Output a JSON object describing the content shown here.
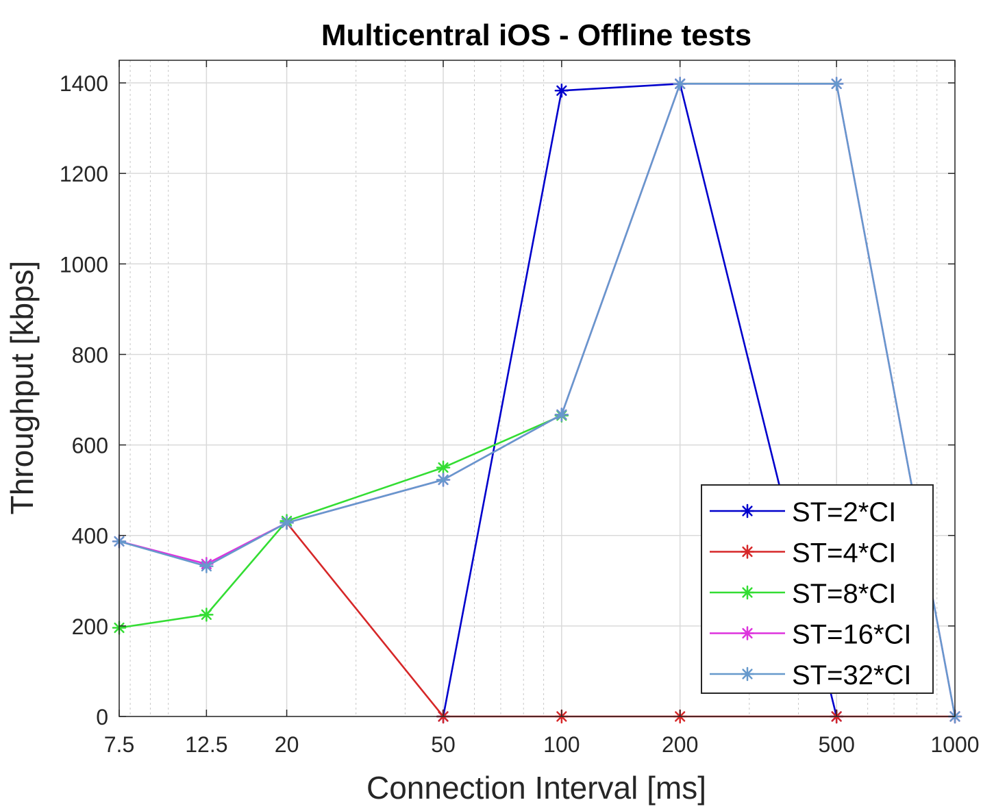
{
  "chart_data": {
    "type": "line",
    "title": "Multicentral iOS - Offline tests",
    "xlabel": "Connection Interval [ms]",
    "ylabel": "Throughput [kbps]",
    "x_scale": "log",
    "x": [
      7.5,
      12.5,
      20,
      50,
      100,
      200,
      500,
      1000
    ],
    "x_tick_labels": [
      "7.5",
      "12.5",
      "20",
      "50",
      "100",
      "200",
      "500",
      "1000"
    ],
    "xlim": [
      7.5,
      1000
    ],
    "ylim": [
      0,
      1450
    ],
    "y_ticks": [
      0,
      200,
      400,
      600,
      800,
      1000,
      1200,
      1400
    ],
    "y_tick_labels": [
      "0",
      "200",
      "400",
      "600",
      "800",
      "1000",
      "1200",
      "1400"
    ],
    "grid": true,
    "legend_position": "bottom-right",
    "series": [
      {
        "name": "ST=2*CI",
        "color": "#0000cc",
        "values": [
          null,
          null,
          null,
          0,
          1383,
          1398,
          0,
          null
        ]
      },
      {
        "name": "ST=4*CI",
        "color": "#d62728",
        "values": [
          null,
          null,
          428,
          0,
          0,
          0,
          0,
          0
        ]
      },
      {
        "name": "ST=8*CI",
        "color": "#33dd33",
        "values": [
          196,
          225,
          432,
          550,
          665,
          null,
          null,
          null
        ]
      },
      {
        "name": "ST=16*CI",
        "color": "#dd33dd",
        "values": [
          387,
          337,
          428,
          523,
          667,
          1398,
          1398,
          0
        ]
      },
      {
        "name": "ST=32*CI",
        "color": "#6699cc",
        "values": [
          387,
          332,
          428,
          523,
          667,
          1398,
          1398,
          0
        ]
      }
    ]
  }
}
